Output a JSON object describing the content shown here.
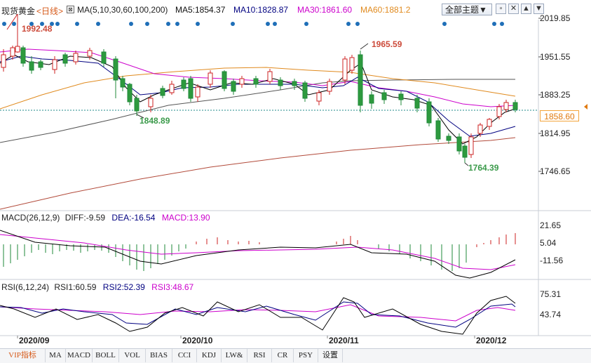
{
  "header": {
    "title": "现货黄金",
    "period": "<日线>",
    "ma_label": "MA(5,10,30,60,100,200)",
    "ma5": "MA5:1854.37",
    "ma10": "MA10:1828.87",
    "ma30": "MA30:1861.60",
    "ma60": "MA60:1881.2",
    "theme_button": "全部主题▼",
    "colors": {
      "ma5": "#000000",
      "ma10": "#000080",
      "ma30": "#cc00cc",
      "ma60": "#e08a1e",
      "up": "#cc2222",
      "down": "#1f8a3a"
    }
  },
  "price_axis": [
    "2019.85",
    "1951.55",
    "1883.25",
    "1814.95",
    "1746.65"
  ],
  "current_price": "1858.60",
  "annotations": {
    "high1": "1992.48",
    "high2": "1965.59",
    "low1": "1848.89",
    "low2": "1764.39"
  },
  "macd": {
    "label": "MACD(26,12,9)",
    "diff": "DIFF:-9.59",
    "dea": "DEA:-16.54",
    "macd": "MACD:13.90",
    "axis": [
      "21.65",
      "5.04",
      "-11.56"
    ]
  },
  "rsi": {
    "label": "RSI(6,12,24)",
    "rsi1": "RSI1:60.59",
    "rsi2": "RSI2:52.39",
    "rsi3": "RSI3:48.67",
    "axis": [
      "75.31",
      "43.74"
    ]
  },
  "dates": [
    "2020/09",
    "2020/10",
    "2020/11",
    "2020/12"
  ],
  "tabs": [
    "VIP指标",
    "MA",
    "MACD",
    "BOLL",
    "VOL",
    "BIAS",
    "CCI",
    "KDJ",
    "LW&",
    "RSI",
    "CR",
    "PSY",
    "设置"
  ]
}
